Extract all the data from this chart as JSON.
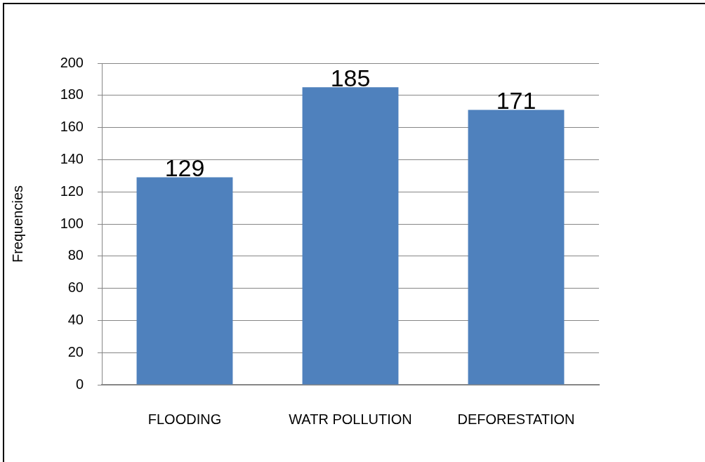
{
  "chart_data": {
    "type": "bar",
    "ylabel": "Frequencies",
    "categories": [
      "FLOODING",
      "WATR POLLUTION",
      "DEFORESTATION"
    ],
    "values": [
      129,
      185,
      171
    ],
    "color": "#4f81bd",
    "ylim": [
      0,
      200
    ],
    "yticks": [
      0,
      20,
      40,
      60,
      80,
      100,
      120,
      140,
      160,
      180,
      200
    ],
    "grid": "y",
    "data_labels": true
  }
}
